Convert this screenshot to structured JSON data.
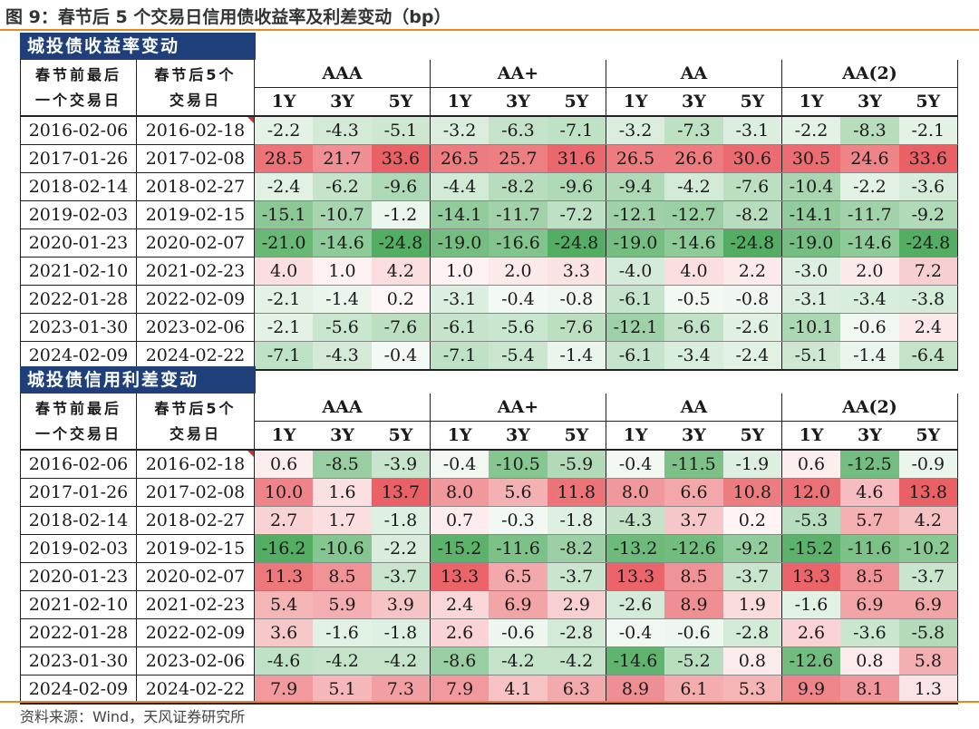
{
  "title": "图 9：春节后 5 个交易日信用债收益率及利差变动（bp）",
  "source": "资料来源：Wind，天风证券研究所",
  "headers": {
    "date1": "春节前最后一个交易日",
    "date1_line1": "春节前最后",
    "date1_line2": "一个交易日",
    "date2": "春节后5个交易日",
    "date2_line1": "春节后5个",
    "date2_line2": "交易日",
    "grades": [
      "AAA",
      "AA+",
      "AA",
      "AA(2)"
    ],
    "tenors": [
      "1Y",
      "3Y",
      "5Y"
    ]
  },
  "colors": {
    "positive": "#e8595f",
    "negative": "#4caa5c",
    "neutral": "#ffffff",
    "section_bg": "#1f3f7a",
    "rule": "#e8891f"
  },
  "sections": [
    {
      "title": "城投债收益率变动",
      "rows": [
        {
          "d1": "2016-02-06",
          "d2": "2016-02-18",
          "v": [
            -2.2,
            -4.3,
            -5.1,
            -3.2,
            -6.3,
            -7.1,
            -3.2,
            -7.3,
            -3.1,
            -2.2,
            -8.3,
            -2.1
          ]
        },
        {
          "d1": "2017-01-26",
          "d2": "2017-02-08",
          "v": [
            28.5,
            21.7,
            33.6,
            26.5,
            25.7,
            31.6,
            26.5,
            26.6,
            30.6,
            30.5,
            24.6,
            33.6
          ]
        },
        {
          "d1": "2018-02-14",
          "d2": "2018-02-27",
          "v": [
            -2.4,
            -6.2,
            -9.6,
            -4.4,
            -8.2,
            -9.6,
            -9.4,
            -4.2,
            -7.6,
            -10.4,
            -2.2,
            -3.6
          ]
        },
        {
          "d1": "2019-02-03",
          "d2": "2019-02-15",
          "v": [
            -15.1,
            -10.7,
            -1.2,
            -14.1,
            -11.7,
            -7.2,
            -12.1,
            -12.7,
            -8.2,
            -14.1,
            -11.7,
            -9.2
          ]
        },
        {
          "d1": "2020-01-23",
          "d2": "2020-02-07",
          "v": [
            -21.0,
            -14.6,
            -24.8,
            -19.0,
            -16.6,
            -24.8,
            -19.0,
            -14.6,
            -24.8,
            -19.0,
            -14.6,
            -24.8
          ]
        },
        {
          "d1": "2021-02-10",
          "d2": "2021-02-23",
          "v": [
            4.0,
            1.0,
            4.2,
            1.0,
            2.0,
            3.3,
            -4.0,
            4.0,
            2.2,
            -3.0,
            2.0,
            7.2
          ]
        },
        {
          "d1": "2022-01-28",
          "d2": "2022-02-09",
          "v": [
            -2.1,
            -1.4,
            0.2,
            -3.1,
            -0.4,
            -0.8,
            -6.1,
            -0.5,
            -0.8,
            -3.1,
            -3.4,
            -3.8
          ]
        },
        {
          "d1": "2023-01-30",
          "d2": "2023-02-06",
          "v": [
            -2.1,
            -5.6,
            -7.6,
            -6.1,
            -5.6,
            -7.6,
            -12.1,
            -6.6,
            -2.6,
            -10.1,
            -0.6,
            2.4
          ]
        },
        {
          "d1": "2024-02-09",
          "d2": "2024-02-22",
          "v": [
            -7.1,
            -4.3,
            -0.4,
            -7.1,
            -5.4,
            -1.4,
            -6.1,
            -3.4,
            -2.4,
            -5.1,
            -1.4,
            -6.4
          ]
        }
      ]
    },
    {
      "title": "城投债信用利差变动",
      "rows": [
        {
          "d1": "2016-02-06",
          "d2": "2016-02-18",
          "v": [
            0.6,
            -8.5,
            -3.9,
            -0.4,
            -10.5,
            -5.9,
            -0.4,
            -11.5,
            -1.9,
            0.6,
            -12.5,
            -0.9
          ]
        },
        {
          "d1": "2017-01-26",
          "d2": "2017-02-08",
          "v": [
            10.0,
            1.6,
            13.7,
            8.0,
            5.6,
            11.8,
            8.0,
            6.6,
            10.8,
            12.0,
            4.6,
            13.8
          ]
        },
        {
          "d1": "2018-02-14",
          "d2": "2018-02-27",
          "v": [
            2.7,
            1.7,
            -1.8,
            0.7,
            -0.3,
            -1.8,
            -4.3,
            3.7,
            0.2,
            -5.3,
            5.7,
            4.2
          ]
        },
        {
          "d1": "2019-02-03",
          "d2": "2019-02-15",
          "v": [
            -16.2,
            -10.6,
            -2.2,
            -15.2,
            -11.6,
            -8.2,
            -13.2,
            -12.6,
            -9.2,
            -15.2,
            -11.6,
            -10.2
          ]
        },
        {
          "d1": "2020-01-23",
          "d2": "2020-02-07",
          "v": [
            11.3,
            8.5,
            -3.7,
            13.3,
            6.5,
            -3.7,
            13.3,
            8.5,
            -3.7,
            13.3,
            8.5,
            -3.7
          ]
        },
        {
          "d1": "2021-02-10",
          "d2": "2021-02-23",
          "v": [
            5.4,
            5.9,
            3.9,
            2.4,
            6.9,
            2.9,
            -2.6,
            8.9,
            1.9,
            -1.6,
            6.9,
            6.9
          ]
        },
        {
          "d1": "2022-01-28",
          "d2": "2022-02-09",
          "v": [
            3.6,
            -1.6,
            -1.8,
            2.6,
            -0.6,
            -2.8,
            -0.4,
            -0.6,
            -2.8,
            2.6,
            -3.6,
            -5.8
          ]
        },
        {
          "d1": "2023-01-30",
          "d2": "2023-02-06",
          "v": [
            -4.6,
            -4.2,
            -4.2,
            -8.6,
            -4.2,
            -4.2,
            -14.6,
            -5.2,
            0.8,
            -12.6,
            0.8,
            5.8
          ]
        },
        {
          "d1": "2024-02-09",
          "d2": "2024-02-22",
          "v": [
            7.9,
            5.1,
            7.3,
            7.9,
            4.1,
            6.3,
            8.9,
            6.1,
            5.3,
            9.9,
            8.1,
            1.3
          ]
        }
      ]
    }
  ]
}
